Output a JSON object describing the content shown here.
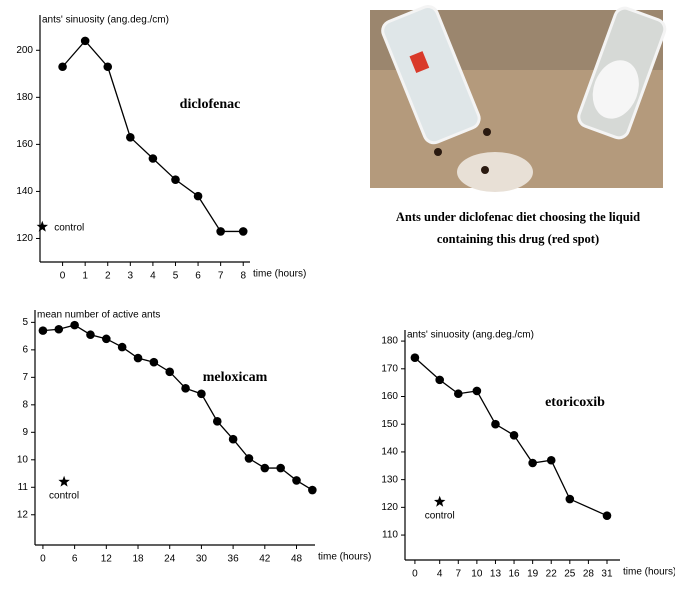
{
  "chart_data": [
    {
      "type": "line",
      "title": "diclofenac",
      "y_label": "ants' sinuosity (ang.deg./cm)",
      "x_label": "time (hours)",
      "x": [
        0,
        1,
        2,
        3,
        4,
        5,
        6,
        7,
        8
      ],
      "values": [
        193,
        204,
        193,
        163,
        154,
        145,
        138,
        123,
        123
      ],
      "color": "#000000",
      "xlim": [
        -1,
        8.3
      ],
      "ylim": [
        110,
        215
      ],
      "xticks": [
        0,
        1,
        2,
        3,
        4,
        5,
        6,
        7,
        8
      ],
      "yticks": [
        120,
        140,
        160,
        180,
        200
      ],
      "control": {
        "x": -0.9,
        "y": 125,
        "label": "control"
      }
    },
    {
      "type": "line",
      "title": "meloxicam",
      "y_label": "mean number of active ants",
      "x_label": "time (hours)",
      "x": [
        0,
        3,
        6,
        9,
        12,
        15,
        18,
        21,
        24,
        27,
        30,
        33,
        36,
        39,
        42,
        45,
        48,
        51
      ],
      "values": [
        5.3,
        5.25,
        5.1,
        5.45,
        5.6,
        5.9,
        6.3,
        6.45,
        6.8,
        7.4,
        7.6,
        8.6,
        9.25,
        9.95,
        10.3,
        10.3,
        10.75,
        11.1
      ],
      "color": "#000000",
      "xlim": [
        -1.5,
        51.5
      ],
      "ylim": [
        4.55,
        13.1
      ],
      "y_inverted": true,
      "xticks": [
        0,
        6,
        12,
        18,
        24,
        30,
        36,
        42,
        48
      ],
      "yticks": [
        5,
        6,
        7,
        8,
        9,
        10,
        11,
        12
      ],
      "control": {
        "x": 4,
        "y": 10.8,
        "label": "control"
      }
    },
    {
      "type": "line",
      "title": "etoricoxib",
      "y_label": "ants' sinuosity (ang.deg./cm)",
      "x_label": "time (hours)",
      "x": [
        0,
        4,
        7,
        10,
        13,
        16,
        19,
        22,
        25,
        31
      ],
      "values": [
        174,
        166,
        161,
        162,
        150,
        146,
        136,
        137,
        123,
        117
      ],
      "color": "#000000",
      "xlim": [
        -1.6,
        33.1
      ],
      "ylim": [
        101,
        184
      ],
      "xticks": [
        0,
        4,
        7,
        10,
        13,
        16,
        19,
        22,
        25,
        28,
        31
      ],
      "yticks": [
        110,
        120,
        130,
        140,
        150,
        160,
        170,
        180
      ],
      "control": {
        "x": 4,
        "y": 122,
        "label": "control"
      }
    }
  ],
  "photo": {
    "caption": [
      "Ants under diclofenac diet choosing the liquid",
      "containing this drug (red spot)"
    ]
  }
}
